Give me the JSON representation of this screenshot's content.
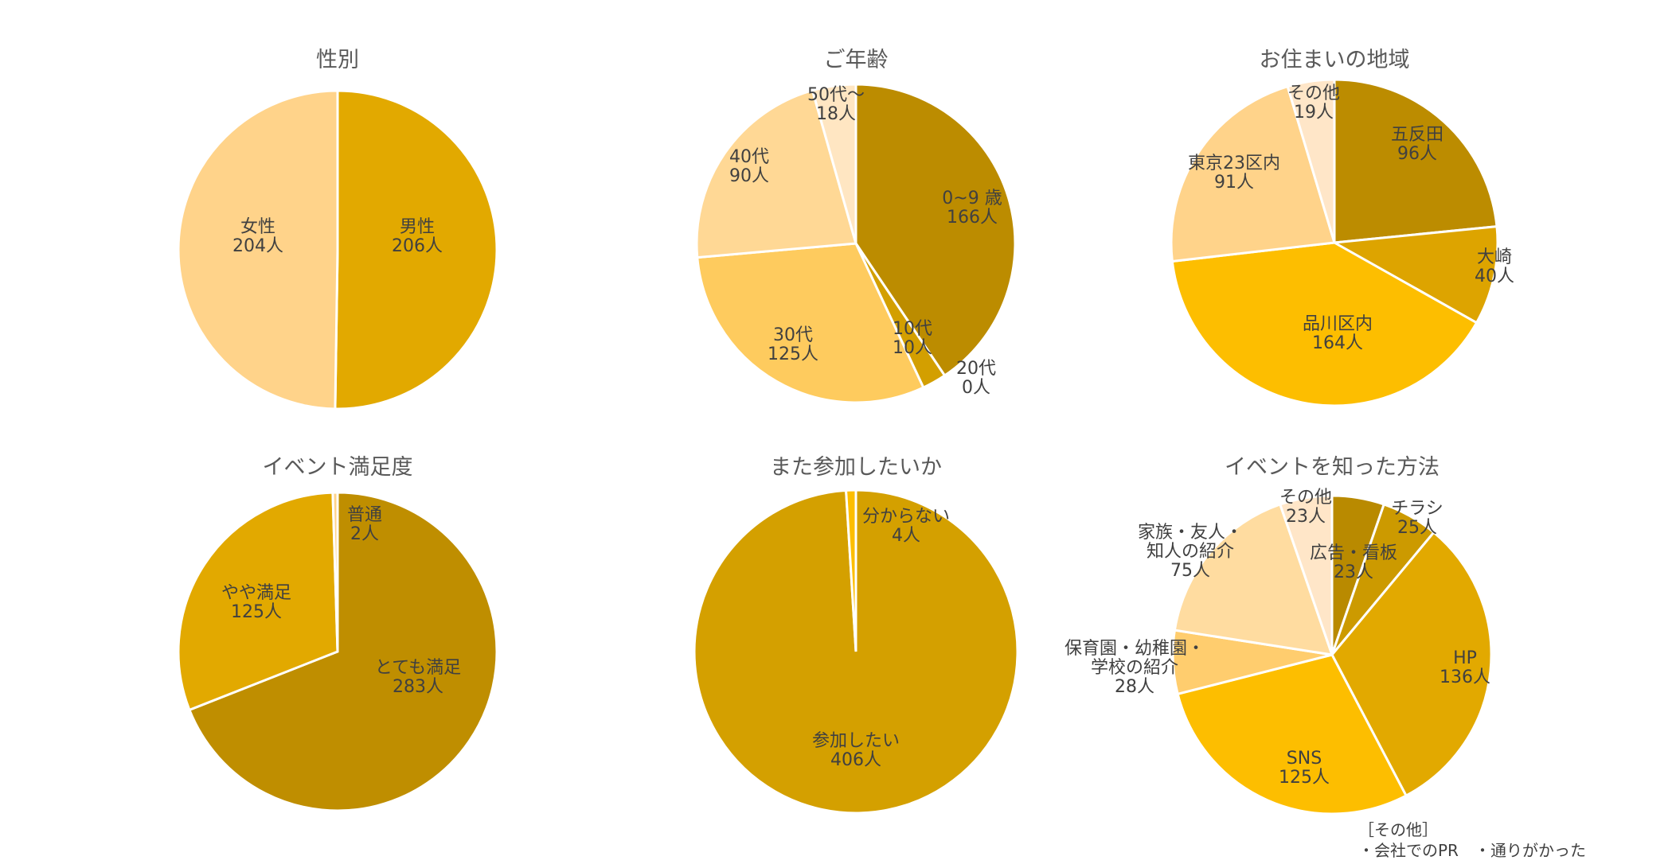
{
  "chart_data": [
    {
      "type": "pie",
      "title": "性別",
      "slices": [
        {
          "label": [
            "男性",
            "206人"
          ],
          "value": 206,
          "color": "#E2A900"
        },
        {
          "label": [
            "女性",
            "204人"
          ],
          "value": 204,
          "color": "#FFD38A"
        }
      ]
    },
    {
      "type": "pie",
      "title": "ご年齢",
      "slices": [
        {
          "label": [
            "0~9 歳",
            "166人"
          ],
          "value": 166,
          "color": "#BC8C00"
        },
        {
          "label": [
            "10代",
            "10人"
          ],
          "value": 10,
          "color": "#D39F00"
        },
        {
          "label": [
            "20代",
            "0人"
          ],
          "value": 0,
          "color": "#E8B200"
        },
        {
          "label": [
            "30代",
            "125人"
          ],
          "value": 125,
          "color": "#FECB5E"
        },
        {
          "label": [
            "40代",
            "90人"
          ],
          "value": 90,
          "color": "#FFD895"
        },
        {
          "label": [
            "50代～",
            "18人"
          ],
          "value": 18,
          "color": "#FFE6C2"
        }
      ]
    },
    {
      "type": "pie",
      "title": "お住まいの地域",
      "slices": [
        {
          "label": [
            "五反田",
            "96人"
          ],
          "value": 96,
          "color": "#BC8C00"
        },
        {
          "label": [
            "大崎",
            "40人"
          ],
          "value": 40,
          "color": "#DDA400"
        },
        {
          "label": [
            "品川区内",
            "164人"
          ],
          "value": 164,
          "color": "#FDBE00"
        },
        {
          "label": [
            "東京23区内",
            "91人"
          ],
          "value": 91,
          "color": "#FFD38A"
        },
        {
          "label": [
            "その他",
            "19人"
          ],
          "value": 19,
          "color": "#FFE6C8"
        }
      ]
    },
    {
      "type": "pie",
      "title": "イベント満足度",
      "slices": [
        {
          "label": [
            "とても満足",
            "283人"
          ],
          "value": 283,
          "color": "#BF8E00"
        },
        {
          "label": [
            "やや満足",
            "125人"
          ],
          "value": 125,
          "color": "#E2A900"
        },
        {
          "label": [
            "普通",
            "2人"
          ],
          "value": 2,
          "color": "#FFD38A"
        }
      ]
    },
    {
      "type": "pie",
      "title": "また参加したいか",
      "slices": [
        {
          "label": [
            "参加したい",
            "406人"
          ],
          "value": 406,
          "color": "#D4A000"
        },
        {
          "label": [
            "分からない",
            "4人"
          ],
          "value": 4,
          "color": "#FDBE00"
        }
      ]
    },
    {
      "type": "pie",
      "title": "イベントを知った方法",
      "slices": [
        {
          "label": [
            "広告・看板",
            "23人"
          ],
          "value": 23,
          "color": "#B98A00"
        },
        {
          "label": [
            "チラシ",
            "25人"
          ],
          "value": 25,
          "color": "#CC9A00"
        },
        {
          "label": [
            "HP",
            "136人"
          ],
          "value": 136,
          "color": "#E2A900"
        },
        {
          "label": [
            "SNS",
            "125人"
          ],
          "value": 125,
          "color": "#FDBE00"
        },
        {
          "label": [
            "保育園・幼稚園・",
            "学校の紹介",
            "28人"
          ],
          "value": 28,
          "color": "#FFCD6E"
        },
        {
          "label": [
            "家族・友人・",
            "知人の紹介",
            "75人"
          ],
          "value": 75,
          "color": "#FFDCA0"
        },
        {
          "label": [
            "その他",
            "23人"
          ],
          "value": 23,
          "color": "#FFE6C8"
        }
      ]
    }
  ],
  "footnote": {
    "heading": "［その他］",
    "items": "・会社でのPR　・通りがかった"
  }
}
